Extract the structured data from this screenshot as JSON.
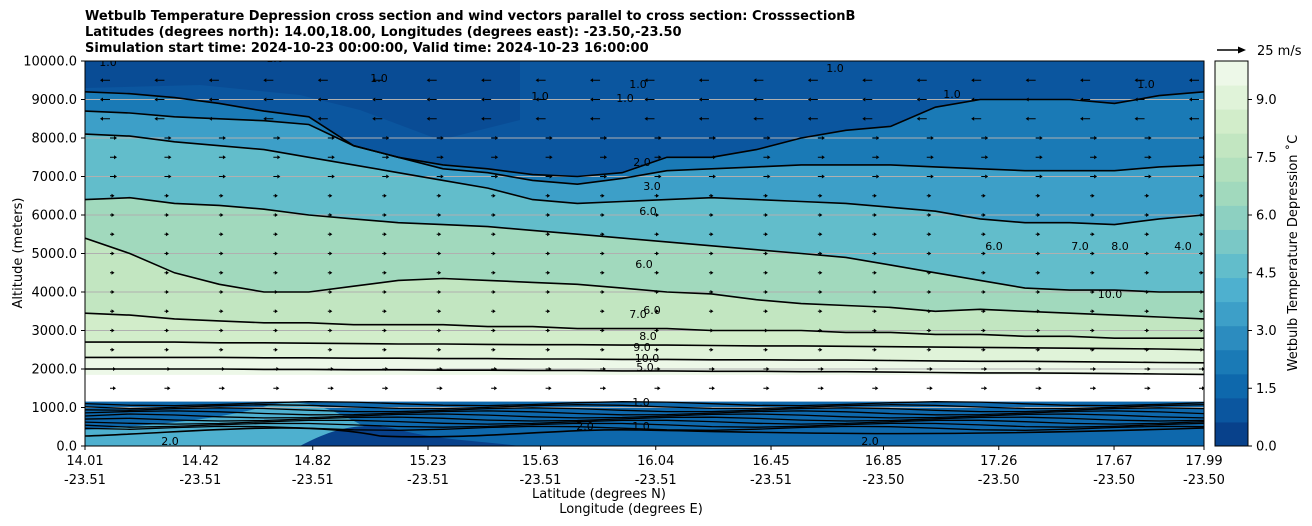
{
  "title_lines": [
    "Wetbulb Temperature Depression cross section and wind vectors parallel to cross section: CrosssectionB",
    "Latitudes (degrees north): 14.00,18.00, Longitudes (degrees east): -23.50,-23.50",
    "Simulation start time: 2024-10-23 00:00:00, Valid time: 2024-10-23 16:00:00"
  ],
  "chart_data": {
    "type": "heatmap",
    "title": "Wetbulb Temperature Depression cross section and wind vectors parallel to cross section: CrosssectionB",
    "ylabel": "Altitude (meters)",
    "xlabel_line1": "Latitude (degrees N)",
    "xlabel_line2": "Longitude (degrees E)",
    "ylim": [
      0,
      10000
    ],
    "xlim": [
      14.01,
      17.99
    ],
    "yticks": [
      "0.0",
      "1000.0",
      "2000.0",
      "3000.0",
      "4000.0",
      "5000.0",
      "6000.0",
      "7000.0",
      "8000.0",
      "9000.0",
      "10000.0"
    ],
    "xticks": [
      {
        "lat": 14.01,
        "lat_label": "14.01",
        "lon_label": "-23.51"
      },
      {
        "lat": 14.42,
        "lat_label": "14.42",
        "lon_label": "-23.51"
      },
      {
        "lat": 14.82,
        "lat_label": "14.82",
        "lon_label": "-23.51"
      },
      {
        "lat": 15.23,
        "lat_label": "15.23",
        "lon_label": "-23.51"
      },
      {
        "lat": 15.63,
        "lat_label": "15.63",
        "lon_label": "-23.51"
      },
      {
        "lat": 16.04,
        "lat_label": "16.04",
        "lon_label": "-23.51"
      },
      {
        "lat": 16.45,
        "lat_label": "16.45",
        "lon_label": "-23.51"
      },
      {
        "lat": 16.85,
        "lat_label": "16.85",
        "lon_label": "-23.50"
      },
      {
        "lat": 17.26,
        "lat_label": "17.26",
        "lon_label": "-23.50"
      },
      {
        "lat": 17.67,
        "lat_label": "17.67",
        "lon_label": "-23.50"
      },
      {
        "lat": 17.99,
        "lat_label": "17.99",
        "lon_label": "-23.50"
      }
    ],
    "grid": "horizontal",
    "colorbar": {
      "label": "Wetbulb Temperature Depression ˚C",
      "range": [
        0,
        10
      ],
      "ticks": [
        "0.0",
        "1.5",
        "3.0",
        "4.5",
        "6.0",
        "7.5",
        "9.0"
      ],
      "colors": [
        "#08418b",
        "#0b569f",
        "#0e68ac",
        "#1a7ab6",
        "#2c8cbf",
        "#3d9fc8",
        "#4eb0cf",
        "#62bdcb",
        "#7ac8c6",
        "#8dd0c1",
        "#a1d9bd",
        "#b2e0bd",
        "#c2e6c1",
        "#d2edca",
        "#e0f3d9",
        "#edf8e8"
      ]
    },
    "quiver_key": {
      "label": "25 m/s",
      "speed": 25
    },
    "contour_levels": [
      {
        "level": 1.0,
        "y": [
          9200,
          9150,
          9050,
          8900,
          8700,
          8550,
          7800,
          7500,
          7300,
          7200,
          7050,
          7000,
          7100,
          7500,
          7500,
          7700,
          8000,
          8200,
          8300,
          8800,
          9000,
          9000,
          9000,
          8900,
          9100,
          9200
        ]
      },
      {
        "level": 2.0,
        "y": [
          8700,
          8650,
          8550,
          8500,
          8450,
          8350,
          7800,
          7500,
          7200,
          7100,
          6900,
          6800,
          6950,
          7150,
          7200,
          7250,
          7300,
          7300,
          7300,
          7250,
          7200,
          7150,
          7150,
          7150,
          7250,
          7300
        ]
      },
      {
        "level": 3.0,
        "y": [
          8100,
          8050,
          7900,
          7800,
          7700,
          7500,
          7300,
          7100,
          6900,
          6700,
          6400,
          6300,
          6350,
          6400,
          6450,
          6400,
          6350,
          6300,
          6200,
          6100,
          5900,
          5800,
          5800,
          5750,
          5900,
          6000
        ]
      },
      {
        "level": 4.0,
        "y": [
          6400,
          6450,
          6300,
          6250,
          6150,
          6000,
          5900,
          5800,
          5750,
          5700,
          5600,
          5500,
          5400,
          5300,
          5200,
          5100,
          5000,
          4900,
          4700,
          4500,
          4300,
          4100,
          4050,
          4050,
          4000,
          4000
        ]
      },
      {
        "level": 6.0,
        "y": [
          5400,
          5000,
          4500,
          4200,
          4000,
          4000,
          4150,
          4300,
          4350,
          4300,
          4250,
          4200,
          4100,
          4000,
          3950,
          3800,
          3700,
          3650,
          3600,
          3500,
          3550,
          3500,
          3450,
          3400,
          3350,
          3300
        ]
      },
      {
        "level": 7.0,
        "y": [
          3450,
          3400,
          3300,
          3250,
          3200,
          3200,
          3150,
          3150,
          3150,
          3100,
          3100,
          3050,
          3050,
          3050,
          3000,
          3000,
          3000,
          2950,
          2950,
          2900,
          2900,
          2850,
          2850,
          2800,
          2800,
          2800
        ]
      },
      {
        "level": 8.0,
        "y": [
          2700,
          2700,
          2700,
          2680,
          2680,
          2670,
          2660,
          2650,
          2650,
          2640,
          2630,
          2630,
          2620,
          2620,
          2610,
          2600,
          2600,
          2590,
          2580,
          2570,
          2560,
          2550,
          2540,
          2530,
          2520,
          2500
        ]
      },
      {
        "level": 9.0,
        "y": [
          2300,
          2300,
          2300,
          2300,
          2290,
          2290,
          2280,
          2280,
          2270,
          2270,
          2260,
          2260,
          2250,
          2250,
          2240,
          2240,
          2230,
          2230,
          2220,
          2210,
          2200,
          2200,
          2190,
          2180,
          2170,
          2160
        ]
      },
      {
        "level": 10.0,
        "y": [
          2000,
          2000,
          2000,
          2000,
          1990,
          1990,
          1980,
          1980,
          1970,
          1970,
          1960,
          1960,
          1950,
          1950,
          1940,
          1940,
          1930,
          1930,
          1920,
          1910,
          1900,
          1900,
          1890,
          1880,
          1870,
          1860
        ]
      }
    ],
    "contour_labels": [
      "1.0",
      "1.0",
      "1.0",
      "1.0",
      "1.0",
      "1.0",
      "1.0",
      "1.0",
      "1.0",
      "2.0",
      "3.0",
      "6.0",
      "6.0",
      "6.0",
      "7.0",
      "8.0",
      "9.0",
      "10.0",
      "5.0",
      "6.0",
      "7.0",
      "8.0",
      "4.0",
      "10.0",
      "1.0",
      "1.0",
      "2.0",
      "2.0",
      "2.0"
    ],
    "note": "Lowest ~1000 m shows tightly packed contours (1.0–10.0) and a white no-data band near 1000–2000 m."
  }
}
